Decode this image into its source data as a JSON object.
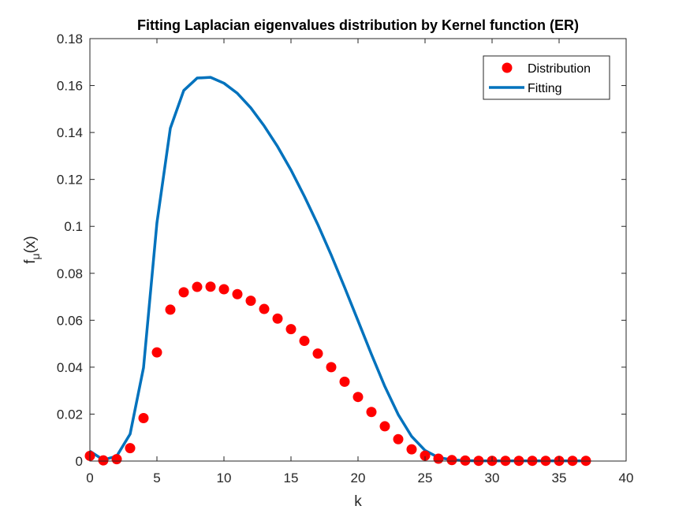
{
  "chart_data": {
    "type": "line",
    "title": "Fitting Laplacian eigenvalues distribution by Kernel function (ER)",
    "xlabel": "k",
    "ylabel": {
      "main": "f",
      "subscript": "μ",
      "suffix": "(x)"
    },
    "xlim": [
      0,
      40
    ],
    "ylim": [
      0,
      0.18
    ],
    "xticks": [
      0,
      5,
      10,
      15,
      20,
      25,
      30,
      35,
      40
    ],
    "yticks": [
      0,
      0.02,
      0.04,
      0.06,
      0.08,
      0.1,
      0.12,
      0.14,
      0.16,
      0.18
    ],
    "xtick_labels": [
      "0",
      "5",
      "10",
      "15",
      "20",
      "25",
      "30",
      "35",
      "40"
    ],
    "ytick_labels": [
      "0",
      "0.02",
      "0.04",
      "0.06",
      "0.08",
      "0.1",
      "0.12",
      "0.14",
      "0.16",
      "0.18"
    ],
    "grid": false,
    "legend_position": "top-right",
    "colors": {
      "distribution": "#ff0000",
      "fitting": "#0072bd",
      "axes": "#262626"
    },
    "series": [
      {
        "name": "Distribution",
        "type": "scatter",
        "x": [
          0,
          1,
          2,
          3,
          4,
          5,
          6,
          7,
          8,
          9,
          10,
          11,
          12,
          13,
          14,
          15,
          16,
          17,
          18,
          19,
          20,
          21,
          22,
          23,
          24,
          25,
          26,
          27,
          28,
          29,
          30,
          31,
          32,
          33,
          34,
          35,
          36,
          37
        ],
        "y": [
          0.0022,
          0.0003,
          0.0008,
          0.0055,
          0.0183,
          0.0463,
          0.0645,
          0.0719,
          0.0742,
          0.0743,
          0.0732,
          0.0711,
          0.0683,
          0.0648,
          0.0607,
          0.0562,
          0.0512,
          0.0458,
          0.04,
          0.0338,
          0.0273,
          0.0209,
          0.0148,
          0.0093,
          0.005,
          0.0023,
          0.001,
          0.0004,
          0.0002,
          0.0001,
          0.0001,
          0.0001,
          0.0001,
          0.0001,
          0.0001,
          0.0001,
          0.0001,
          0.0001
        ]
      },
      {
        "name": "Fitting",
        "type": "line",
        "x": [
          0,
          1,
          2,
          3,
          4,
          5,
          6,
          7,
          8,
          9,
          10,
          11,
          12,
          13,
          14,
          15,
          16,
          17,
          18,
          19,
          20,
          21,
          22,
          23,
          24,
          25,
          26,
          27,
          28,
          29,
          30,
          31,
          32,
          33,
          34,
          35,
          36,
          37
        ],
        "y": [
          0.0042,
          0.0005,
          0.0021,
          0.0115,
          0.0398,
          0.1015,
          0.1418,
          0.1579,
          0.1632,
          0.1635,
          0.161,
          0.1567,
          0.1505,
          0.1428,
          0.134,
          0.124,
          0.1128,
          0.1008,
          0.0878,
          0.074,
          0.0598,
          0.0455,
          0.0318,
          0.0198,
          0.0105,
          0.0045,
          0.0015,
          0.0005,
          0.0002,
          0.0001,
          0.0001,
          0.0001,
          0.0001,
          0.0001,
          0.0001,
          0.0001,
          0.0001,
          0.0001
        ]
      }
    ]
  }
}
